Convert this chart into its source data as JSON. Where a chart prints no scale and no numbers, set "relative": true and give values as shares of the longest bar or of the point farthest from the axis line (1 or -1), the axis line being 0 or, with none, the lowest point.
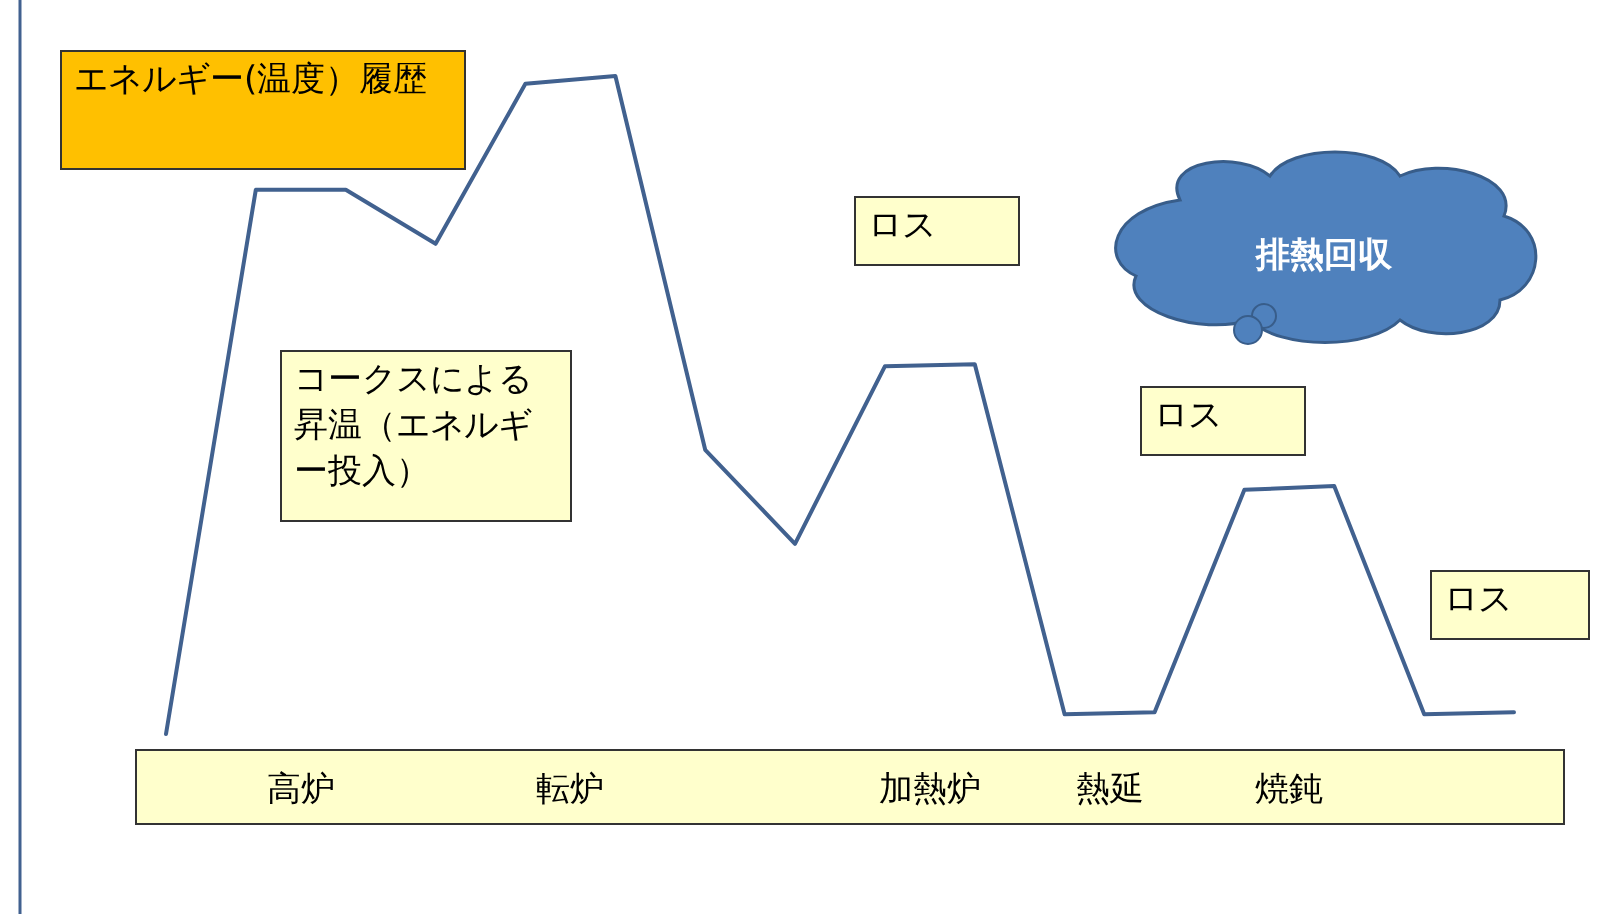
{
  "chart_data": {
    "type": "line",
    "title": "エネルギー(温度）履歴",
    "relative": true,
    "categories": [
      null,
      null,
      null,
      null,
      null,
      null,
      null,
      null,
      null,
      null,
      null,
      null,
      null,
      null,
      null,
      null
    ],
    "series": [
      {
        "color": "#41618f",
        "values": [
          0,
          0.827,
          0.827,
          0.745,
          0.988,
          1,
          0.432,
          0.289,
          0.559,
          0.562,
          0.03,
          0.033,
          0.371,
          0.377,
          0.03,
          0.033
        ]
      }
    ],
    "annotations": [
      "コークスによる昇温（エネルギー投入）",
      "ロス",
      "ロス",
      "ロス",
      "排熱回収",
      "高炉",
      "転炉",
      "加熱炉",
      "熱延",
      "焼鈍"
    ]
  }
}
